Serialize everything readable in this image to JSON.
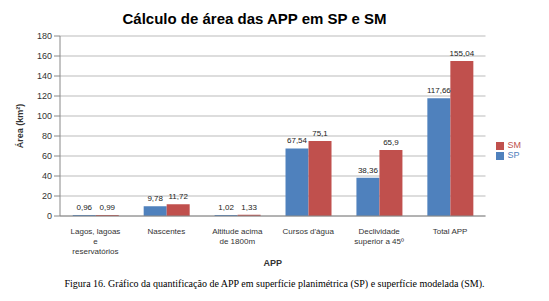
{
  "chart_data": {
    "type": "bar",
    "title": "Cálculo de área das APP em SP e SM",
    "x_label": "APP",
    "y_label": "Área (km²)",
    "caption": "Figura 16. Gráfico da quantificação de APP em superfície planimétrica (SP) e superfície modelada (SM).",
    "categories": [
      "Lagos, lagoas e reservatórios",
      "Nascentes",
      "Altitude acima de 1800m",
      "Cursos d'água",
      "Declividade superior a 45º",
      "Total APP"
    ],
    "series": [
      {
        "name": "SP",
        "color": "#4f81bd",
        "values": [
          0.96,
          9.78,
          1.02,
          67.54,
          38.36,
          117.66
        ],
        "value_labels": [
          "0,96",
          "9,78",
          "1,02",
          "67,54",
          "38,36",
          "117,66"
        ]
      },
      {
        "name": "SM",
        "color": "#c0504d",
        "values": [
          0.99,
          11.72,
          1.33,
          75.1,
          65.9,
          155.04
        ],
        "value_labels": [
          "0,99",
          "11,72",
          "1,33",
          "75,1",
          "65,9",
          "155,04"
        ]
      }
    ],
    "ylim": [
      0,
      180
    ],
    "yticks": [
      0,
      20,
      40,
      60,
      80,
      100,
      120,
      140,
      160,
      180
    ],
    "grid": true,
    "legend": "right",
    "data_labels": true
  }
}
